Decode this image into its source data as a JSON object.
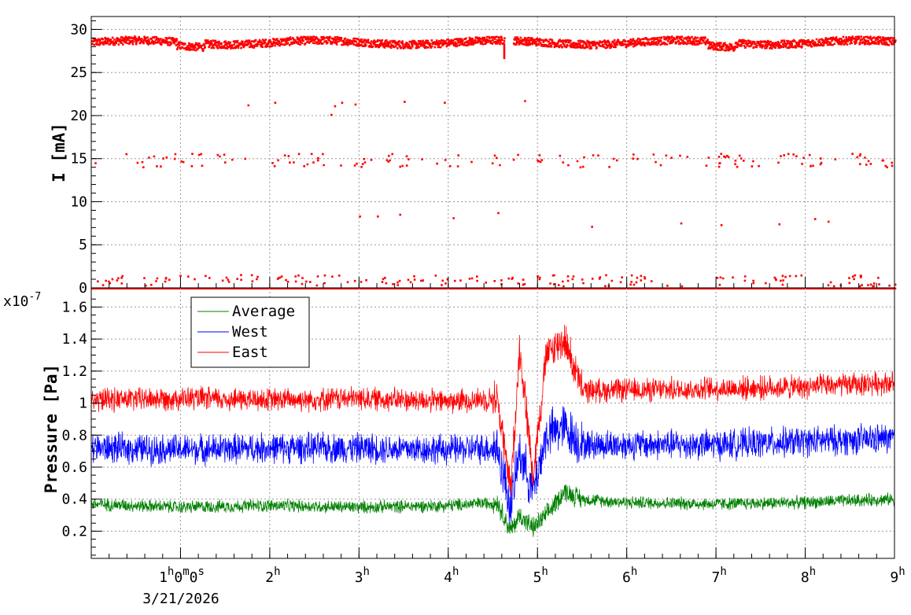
{
  "chart_data": [
    {
      "type": "scatter",
      "ylabel": "I [mA]",
      "xlim_hours": [
        0,
        9
      ],
      "ylim": [
        0,
        31.5
      ],
      "y_ticks": [
        "0",
        "5",
        "10",
        "15",
        "20",
        "25",
        "30"
      ],
      "grid": true,
      "series": [
        {
          "color": "#ff0000",
          "level_bands_mA": [
            28.5,
            15,
            0.5,
            0
          ],
          "gap_hours": [
            4.62,
            4.72
          ],
          "outliers": [
            {
              "x": 1.75,
              "y": 21.3
            },
            {
              "x": 2.05,
              "y": 21.6
            },
            {
              "x": 2.68,
              "y": 20.2
            },
            {
              "x": 2.72,
              "y": 21.2
            },
            {
              "x": 2.8,
              "y": 21.6
            },
            {
              "x": 2.95,
              "y": 21.4
            },
            {
              "x": 3.5,
              "y": 21.7
            },
            {
              "x": 3.95,
              "y": 21.6
            },
            {
              "x": 4.85,
              "y": 21.8
            },
            {
              "x": 3.0,
              "y": 8.4
            },
            {
              "x": 3.2,
              "y": 8.4
            },
            {
              "x": 3.45,
              "y": 8.6
            },
            {
              "x": 4.05,
              "y": 8.2
            },
            {
              "x": 4.55,
              "y": 8.8
            },
            {
              "x": 5.6,
              "y": 7.2
            },
            {
              "x": 6.6,
              "y": 7.6
            },
            {
              "x": 7.05,
              "y": 7.4
            },
            {
              "x": 7.7,
              "y": 7.5
            },
            {
              "x": 8.1,
              "y": 8.1
            },
            {
              "x": 8.25,
              "y": 7.8
            }
          ]
        }
      ]
    },
    {
      "type": "line",
      "ylabel": "Pressure [Pa]",
      "y_exponent": "x10",
      "y_exponent_power": "-7",
      "xlim_hours": [
        0,
        9
      ],
      "ylim": [
        0.03,
        1.72
      ],
      "y_ticks": [
        "0.2",
        "0.4",
        "0.6",
        "0.8",
        "1",
        "1.2",
        "1.4",
        "1.6"
      ],
      "grid": true,
      "legend_position": "top-left",
      "series": [
        {
          "name": "Average",
          "color": "#008000",
          "x": [
            0,
            1,
            2,
            3,
            4,
            4.55,
            4.7,
            4.8,
            4.95,
            5.1,
            5.3,
            5.5,
            6,
            7,
            8,
            9
          ],
          "y": [
            0.37,
            0.35,
            0.36,
            0.35,
            0.36,
            0.38,
            0.2,
            0.3,
            0.22,
            0.3,
            0.45,
            0.4,
            0.38,
            0.37,
            0.38,
            0.4
          ]
        },
        {
          "name": "West",
          "color": "#0000ff",
          "x": [
            0,
            1,
            2,
            3,
            4,
            4.55,
            4.7,
            4.8,
            4.95,
            5.1,
            5.3,
            5.5,
            6,
            7,
            8,
            9
          ],
          "y": [
            0.72,
            0.71,
            0.72,
            0.72,
            0.71,
            0.72,
            0.35,
            0.7,
            0.45,
            0.8,
            0.85,
            0.74,
            0.74,
            0.74,
            0.76,
            0.78
          ]
        },
        {
          "name": "East",
          "color": "#ff0000",
          "x": [
            0,
            1,
            2,
            3,
            4,
            4.55,
            4.7,
            4.8,
            4.95,
            5.1,
            5.3,
            5.5,
            6,
            7,
            8,
            9
          ],
          "y": [
            1.02,
            1.03,
            1.02,
            1.03,
            1.01,
            1.03,
            0.45,
            1.35,
            0.55,
            1.3,
            1.4,
            1.08,
            1.08,
            1.09,
            1.1,
            1.13
          ]
        }
      ]
    }
  ],
  "x_axis": {
    "tick_hours": [
      1,
      2,
      3,
      4,
      5,
      6,
      7,
      8,
      9
    ],
    "first_label": {
      "base": "1",
      "h": "h",
      "min": "0",
      "m": "m",
      "sec": "0",
      "s": "s"
    },
    "labels": [
      {
        "base": "2",
        "sup": "h"
      },
      {
        "base": "3",
        "sup": "h"
      },
      {
        "base": "4",
        "sup": "h"
      },
      {
        "base": "5",
        "sup": "h"
      },
      {
        "base": "6",
        "sup": "h"
      },
      {
        "base": "7",
        "sup": "h"
      },
      {
        "base": "8",
        "sup": "h"
      },
      {
        "base": "9",
        "sup": "h"
      }
    ],
    "date": "3/21/2026"
  }
}
